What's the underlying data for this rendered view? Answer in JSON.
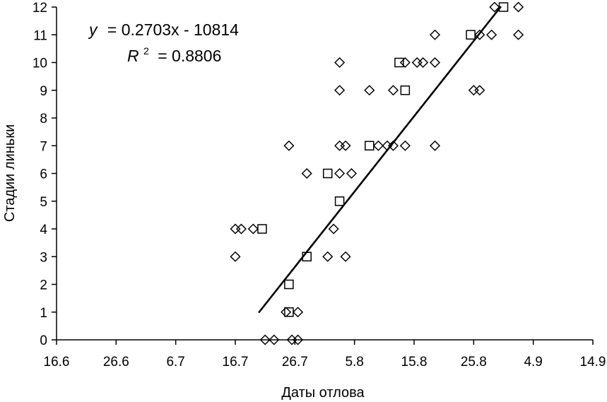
{
  "chart_data": {
    "type": "scatter",
    "title": "",
    "xlabel": "Даты отлова",
    "ylabel": "Стадии линьки",
    "x_tick_labels": [
      "16.6",
      "26.6",
      "6.7",
      "16.7",
      "26.7",
      "5.8",
      "15.8",
      "25.8",
      "4.9",
      "14.9"
    ],
    "x_tick_days": [
      0,
      10,
      20,
      30,
      40,
      50,
      60,
      70,
      80,
      90
    ],
    "xlim_days": [
      0,
      90
    ],
    "y_ticks": [
      "0",
      "1",
      "2",
      "3",
      "4",
      "5",
      "6",
      "7",
      "8",
      "9",
      "10",
      "11",
      "12"
    ],
    "ylim": [
      0,
      12
    ],
    "grid": false,
    "legend": "none",
    "series": [
      {
        "marker": "diamond",
        "points": [
          [
            30.0,
            4
          ],
          [
            31.0,
            4
          ],
          [
            33.0,
            4
          ],
          [
            30.0,
            3
          ],
          [
            35.0,
            0
          ],
          [
            36.5,
            0
          ],
          [
            38.5,
            1
          ],
          [
            40.5,
            1
          ],
          [
            39.0,
            7
          ],
          [
            39.5,
            0
          ],
          [
            40.5,
            0
          ],
          [
            42.0,
            6
          ],
          [
            45.5,
            3
          ],
          [
            48.5,
            3
          ],
          [
            46.5,
            4
          ],
          [
            47.5,
            6
          ],
          [
            47.5,
            7
          ],
          [
            48.5,
            7
          ],
          [
            49.5,
            6
          ],
          [
            47.5,
            9
          ],
          [
            47.5,
            10
          ],
          [
            52.5,
            9
          ],
          [
            54.0,
            7
          ],
          [
            55.5,
            7
          ],
          [
            56.5,
            7
          ],
          [
            56.5,
            9
          ],
          [
            58.5,
            7
          ],
          [
            58.5,
            10
          ],
          [
            60.5,
            10
          ],
          [
            61.5,
            10
          ],
          [
            63.5,
            10
          ],
          [
            63.5,
            11
          ],
          [
            63.5,
            7
          ],
          [
            71.0,
            11
          ],
          [
            73.0,
            11
          ],
          [
            73.5,
            12
          ],
          [
            77.5,
            12
          ],
          [
            77.5,
            11
          ],
          [
            70.0,
            9
          ],
          [
            71.0,
            9
          ]
        ]
      },
      {
        "marker": "square",
        "points": [
          [
            34.5,
            4
          ],
          [
            39.0,
            2
          ],
          [
            39.0,
            1
          ],
          [
            42.0,
            3
          ],
          [
            45.5,
            6
          ],
          [
            47.5,
            5
          ],
          [
            52.5,
            7
          ],
          [
            57.5,
            10
          ],
          [
            58.5,
            9
          ],
          [
            69.5,
            11
          ],
          [
            75.0,
            12
          ]
        ]
      }
    ],
    "trendline": {
      "type": "linear",
      "x_range_days": [
        34.0,
        74.5
      ],
      "y_range": [
        1.0,
        12.0
      ],
      "equation_text": "= 0.2703x - 10814",
      "equation_prefix": "y",
      "r2_label": "R",
      "r2_exponent": "2",
      "r2_text": "= 0.8806"
    }
  }
}
